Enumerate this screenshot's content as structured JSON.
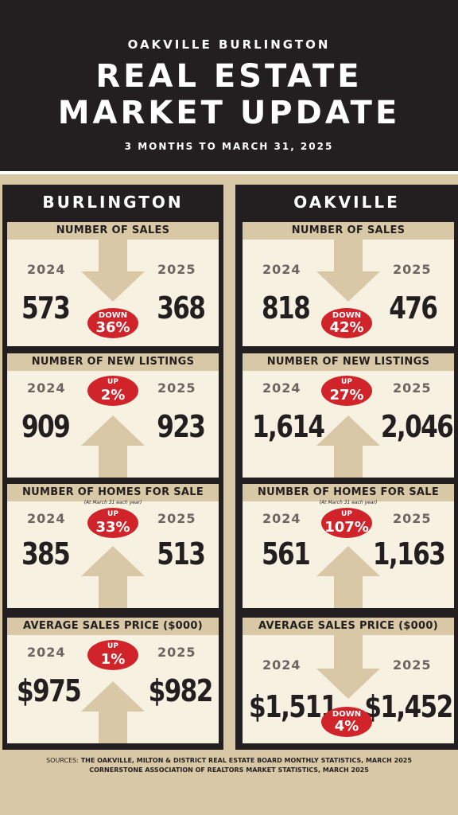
{
  "header": {
    "supertitle": "OAKVILLE BURLINGTON",
    "title_line1": "REAL ESTATE",
    "title_line2": "MARKET UPDATE",
    "subtitle": "3 MONTHS TO MARCH 31, 2025"
  },
  "colors": {
    "dark": "#231f20",
    "tan": "#d9c8a6",
    "cream": "#f7f1e1",
    "red": "#d0232a"
  },
  "burlington": {
    "city": "BURLINGTON",
    "sales": {
      "title": "NUMBER OF SALES",
      "y1": "2024",
      "y2": "2025",
      "v1": "573",
      "v2": "368",
      "dir": "DOWN",
      "pct": "36%"
    },
    "listings": {
      "title": "NUMBER OF NEW LISTINGS",
      "y1": "2024",
      "y2": "2025",
      "v1": "909",
      "v2": "923",
      "dir": "UP",
      "pct": "2%"
    },
    "homes": {
      "title": "NUMBER OF HOMES FOR SALE",
      "note": "(At March 31 each year)",
      "y1": "2024",
      "y2": "2025",
      "v1": "385",
      "v2": "513",
      "dir": "UP",
      "pct": "33%"
    },
    "price": {
      "title": "AVERAGE SALES PRICE ($000)",
      "y1": "2024",
      "y2": "2025",
      "v1": "$975",
      "v2": "$982",
      "dir": "UP",
      "pct": "1%"
    }
  },
  "oakville": {
    "city": "OAKVILLE",
    "sales": {
      "title": "NUMBER OF SALES",
      "y1": "2024",
      "y2": "2025",
      "v1": "818",
      "v2": "476",
      "dir": "DOWN",
      "pct": "42%"
    },
    "listings": {
      "title": "NUMBER OF NEW LISTINGS",
      "y1": "2024",
      "y2": "2025",
      "v1": "1,614",
      "v2": "2,046",
      "dir": "UP",
      "pct": "27%"
    },
    "homes": {
      "title": "NUMBER OF HOMES FOR SALE",
      "note": "(At March 31 each year)",
      "y1": "2024",
      "y2": "2025",
      "v1": "561",
      "v2": "1,163",
      "dir": "UP",
      "pct": "107%"
    },
    "price": {
      "title": "AVERAGE SALES PRICE ($000)",
      "y1": "2024",
      "y2": "2025",
      "v1": "$1,511",
      "v2": "$1,452",
      "dir": "DOWN",
      "pct": "4%"
    }
  },
  "sources": {
    "label": "SOURCES:",
    "line1": "THE OAKVILLE, MILTON & DISTRICT REAL ESTATE BOARD MONTHLY STATISTICS, MARCH 2025",
    "line2": "CORNERSTONE ASSOCIATION OF REALTORS MARKET STATISTICS, MARCH 2025"
  }
}
